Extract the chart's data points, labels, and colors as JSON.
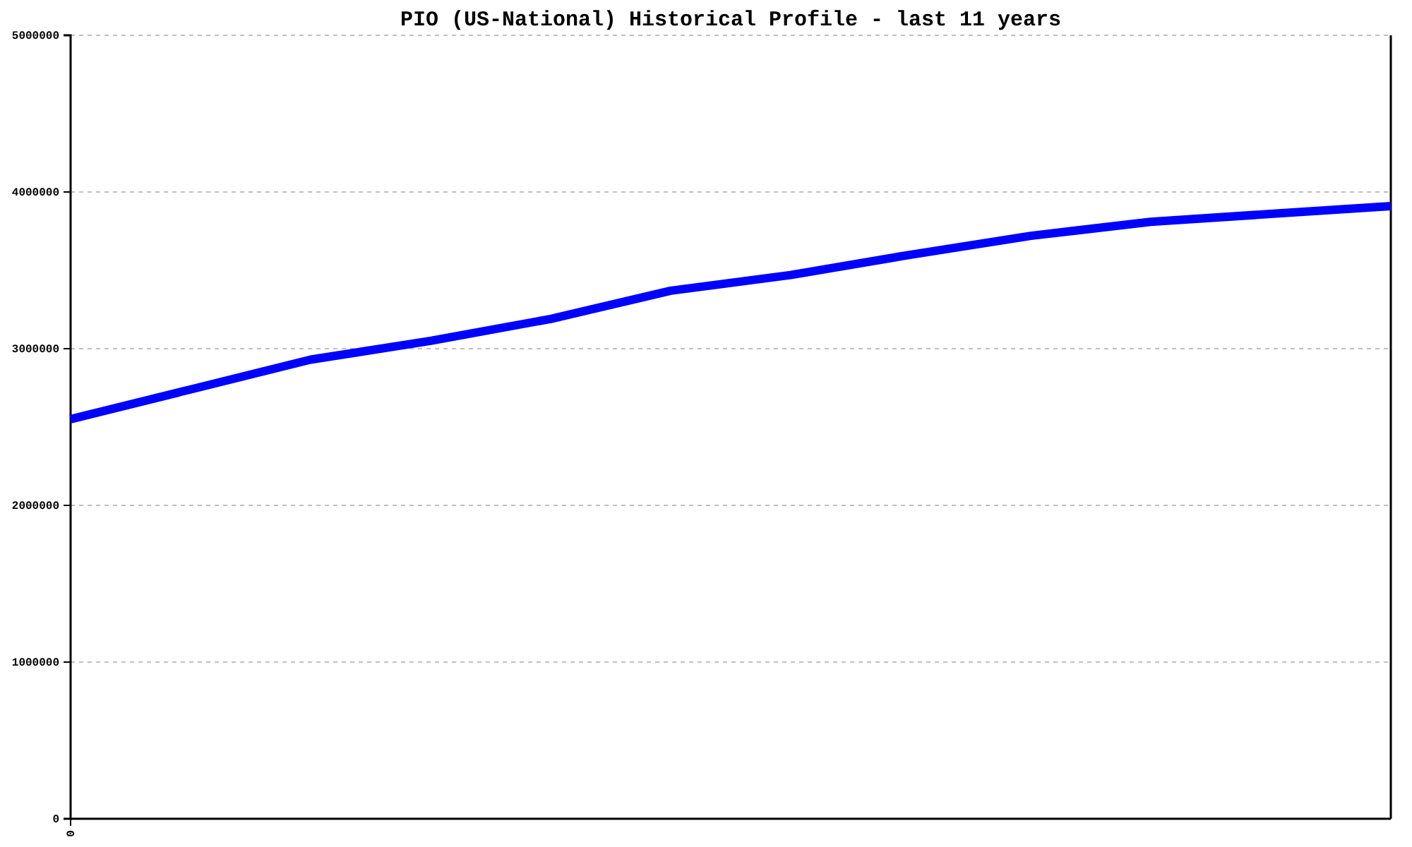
{
  "chart_data": {
    "type": "line",
    "title": "PIO (US-National) Historical Profile - last 11 years",
    "categories": [
      "0",
      null,
      null,
      null,
      null,
      null,
      null,
      null,
      null,
      null,
      null,
      null
    ],
    "series": [
      {
        "color": "#0000ff",
        "values": [
          2550000,
          2740000,
          2930000,
          3050000,
          3190000,
          3370000,
          3470000,
          3600000,
          3720000,
          3810000,
          3860000,
          3910000
        ]
      }
    ],
    "ylim": [
      0,
      5000000
    ],
    "yticks": [
      0,
      1000000,
      2000000,
      3000000,
      4000000,
      5000000
    ],
    "grid": "y",
    "marker": "none",
    "line_style": "solid"
  }
}
